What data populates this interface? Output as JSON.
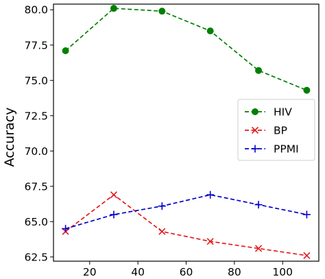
{
  "chart_data": {
    "type": "line",
    "title": "",
    "xlabel": "",
    "ylabel": "Accuracy",
    "x": [
      10,
      30,
      50,
      70,
      90,
      110
    ],
    "xlim": [
      5,
      115
    ],
    "ylim": [
      62.2,
      80.4
    ],
    "xticks": [
      20,
      40,
      60,
      80,
      100
    ],
    "yticks": [
      62.5,
      65.0,
      67.5,
      70.0,
      72.5,
      75.0,
      77.5,
      80.0
    ],
    "grid": false,
    "legend_position": "center-right",
    "series": [
      {
        "name": "HIV",
        "color": "#008000",
        "marker": "circle",
        "linestyle": "dashed",
        "values": [
          77.1,
          80.1,
          79.9,
          78.5,
          75.7,
          74.3
        ]
      },
      {
        "name": "BP",
        "color": "#e31a1c",
        "marker": "x",
        "linestyle": "dashed",
        "values": [
          64.3,
          66.9,
          64.3,
          63.6,
          63.1,
          62.6
        ]
      },
      {
        "name": "PPMI",
        "color": "#0000cc",
        "marker": "plus",
        "linestyle": "dashed",
        "values": [
          64.5,
          65.5,
          66.1,
          66.9,
          66.2,
          65.5
        ]
      }
    ]
  }
}
